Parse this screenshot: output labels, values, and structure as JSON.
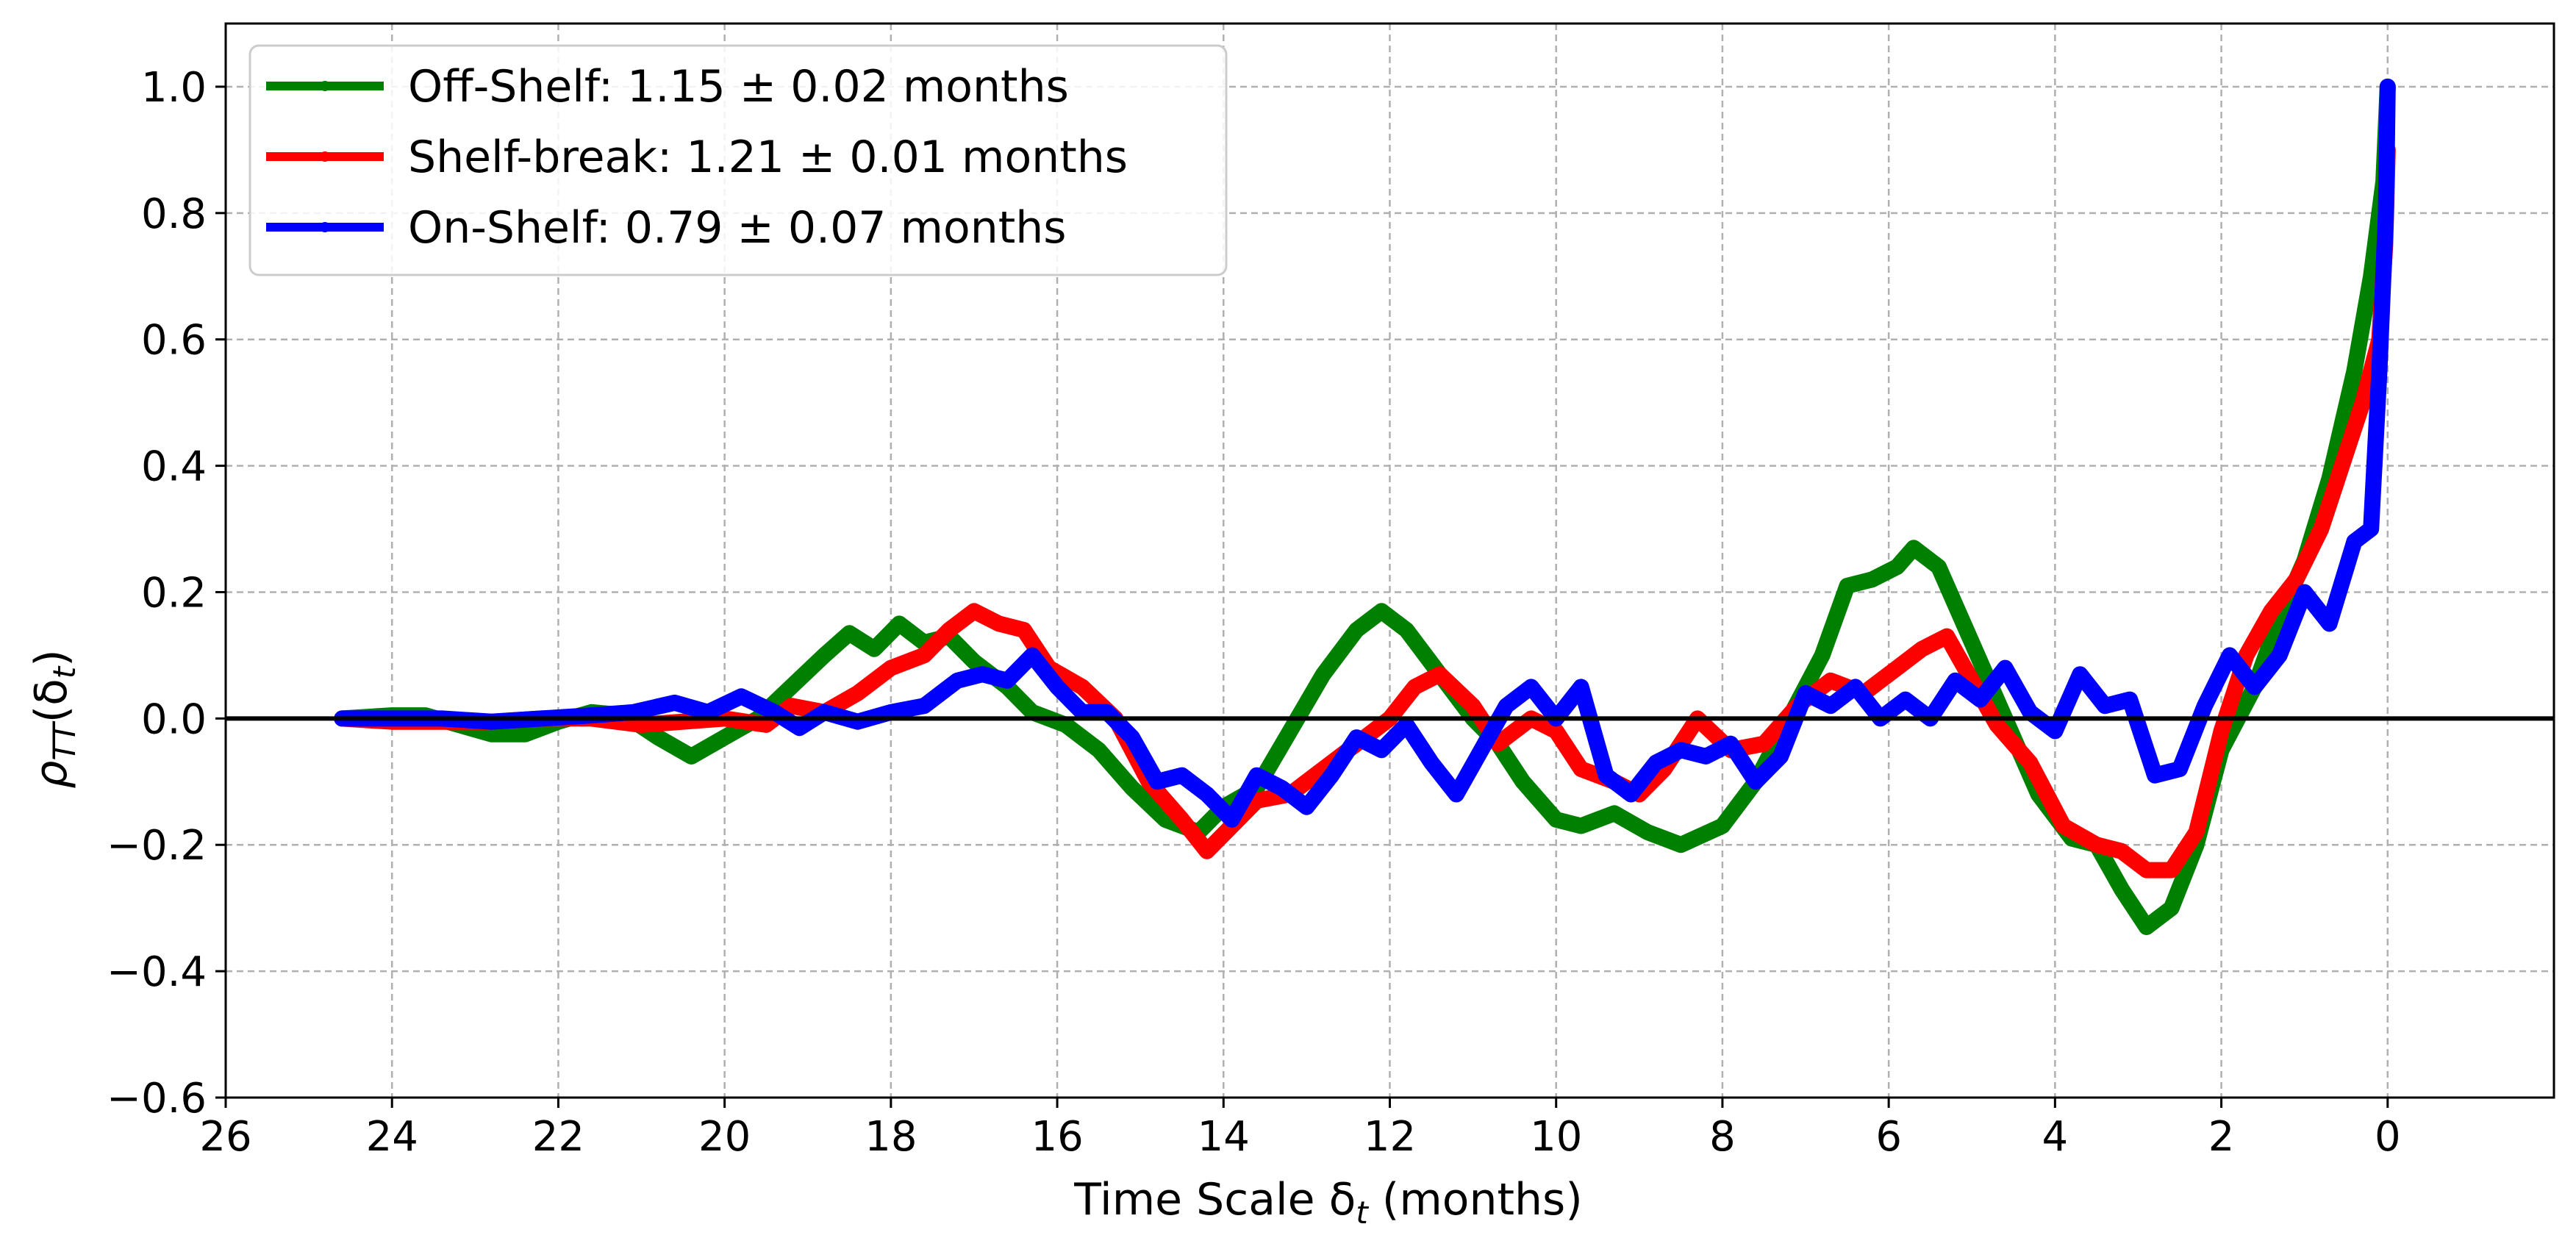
{
  "chart_data": {
    "type": "line",
    "xlabel": "Time Scale δ",
    "xlabel_sub": "t",
    "xlabel_suffix": " (months)",
    "ylabel": "ρ",
    "ylabel_sub": "TT",
    "ylabel_arg": "(δ",
    "ylabel_arg_sub": "t",
    "ylabel_close": ")",
    "xlim": [
      26,
      -2
    ],
    "ylim": [
      -0.6,
      1.1
    ],
    "x_reversed": true,
    "x_ticks": [
      26,
      24,
      22,
      20,
      18,
      16,
      14,
      12,
      10,
      8,
      6,
      4,
      2,
      0
    ],
    "x_tick_labels": [
      "26",
      "24",
      "22",
      "20",
      "18",
      "16",
      "14",
      "12",
      "10",
      "8",
      "6",
      "4",
      "2",
      "0"
    ],
    "y_ticks": [
      -0.6,
      -0.4,
      -0.2,
      0.0,
      0.2,
      0.4,
      0.6,
      0.8,
      1.0
    ],
    "y_tick_labels": [
      "−0.6",
      "−0.4",
      "−0.2",
      "0.0",
      "0.2",
      "0.4",
      "0.6",
      "0.8",
      "1.0"
    ],
    "grid": true,
    "zero_line": true,
    "legend_position": "upper-left",
    "series": [
      {
        "name": "Off-Shelf: 1.15 ± 0.02 months",
        "color": "#008000",
        "points": [
          [
            24.6,
            0.0
          ],
          [
            24,
            0.005
          ],
          [
            23.6,
            0.005
          ],
          [
            23.2,
            -0.01
          ],
          [
            22.8,
            -0.025
          ],
          [
            22.4,
            -0.025
          ],
          [
            22.0,
            -0.005
          ],
          [
            21.6,
            0.01
          ],
          [
            21.2,
            0.005
          ],
          [
            20.8,
            -0.03
          ],
          [
            20.4,
            -0.06
          ],
          [
            20.0,
            -0.03
          ],
          [
            19.6,
            0.0
          ],
          [
            19.2,
            0.05
          ],
          [
            18.8,
            0.1
          ],
          [
            18.5,
            0.135
          ],
          [
            18.2,
            0.11
          ],
          [
            17.9,
            0.15
          ],
          [
            17.6,
            0.12
          ],
          [
            17.3,
            0.13
          ],
          [
            17.0,
            0.09
          ],
          [
            16.6,
            0.05
          ],
          [
            16.3,
            0.01
          ],
          [
            15.9,
            -0.01
          ],
          [
            15.5,
            -0.05
          ],
          [
            15.1,
            -0.11
          ],
          [
            14.7,
            -0.16
          ],
          [
            14.3,
            -0.18
          ],
          [
            14.0,
            -0.14
          ],
          [
            13.6,
            -0.11
          ],
          [
            13.2,
            -0.02
          ],
          [
            12.8,
            0.07
          ],
          [
            12.4,
            0.14
          ],
          [
            12.1,
            0.17
          ],
          [
            11.8,
            0.14
          ],
          [
            11.4,
            0.07
          ],
          [
            11.0,
            0.0
          ],
          [
            10.7,
            -0.04
          ],
          [
            10.4,
            -0.1
          ],
          [
            10.0,
            -0.16
          ],
          [
            9.7,
            -0.17
          ],
          [
            9.3,
            -0.15
          ],
          [
            8.9,
            -0.18
          ],
          [
            8.5,
            -0.2
          ],
          [
            8.0,
            -0.17
          ],
          [
            7.6,
            -0.1
          ],
          [
            7.2,
            0.0
          ],
          [
            6.8,
            0.1
          ],
          [
            6.5,
            0.21
          ],
          [
            6.2,
            0.22
          ],
          [
            5.9,
            0.24
          ],
          [
            5.7,
            0.27
          ],
          [
            5.4,
            0.24
          ],
          [
            5.0,
            0.12
          ],
          [
            4.6,
            0.0
          ],
          [
            4.2,
            -0.12
          ],
          [
            3.8,
            -0.19
          ],
          [
            3.5,
            -0.2
          ],
          [
            3.2,
            -0.27
          ],
          [
            2.9,
            -0.33
          ],
          [
            2.6,
            -0.3
          ],
          [
            2.3,
            -0.2
          ],
          [
            2.0,
            -0.05
          ],
          [
            1.6,
            0.05
          ],
          [
            1.3,
            0.16
          ],
          [
            1.0,
            0.25
          ],
          [
            0.7,
            0.38
          ],
          [
            0.4,
            0.55
          ],
          [
            0.2,
            0.7
          ],
          [
            0.05,
            0.85
          ],
          [
            0.0,
            1.0
          ]
        ]
      },
      {
        "name": "Shelf-break: 1.21 ± 0.01 months",
        "color": "#ff0000",
        "points": [
          [
            24.6,
            0.0
          ],
          [
            24,
            -0.005
          ],
          [
            23.4,
            -0.005
          ],
          [
            22.8,
            -0.005
          ],
          [
            22.2,
            0.0
          ],
          [
            21.6,
            0.0
          ],
          [
            21.0,
            -0.01
          ],
          [
            20.5,
            -0.005
          ],
          [
            20.0,
            0.0
          ],
          [
            19.5,
            -0.01
          ],
          [
            19.2,
            0.02
          ],
          [
            18.8,
            0.01
          ],
          [
            18.4,
            0.04
          ],
          [
            18.0,
            0.08
          ],
          [
            17.6,
            0.1
          ],
          [
            17.3,
            0.14
          ],
          [
            17.0,
            0.17
          ],
          [
            16.7,
            0.15
          ],
          [
            16.4,
            0.14
          ],
          [
            16.1,
            0.08
          ],
          [
            15.7,
            0.05
          ],
          [
            15.3,
            0.0
          ],
          [
            14.9,
            -0.1
          ],
          [
            14.5,
            -0.16
          ],
          [
            14.2,
            -0.21
          ],
          [
            13.9,
            -0.17
          ],
          [
            13.6,
            -0.13
          ],
          [
            13.2,
            -0.12
          ],
          [
            12.8,
            -0.08
          ],
          [
            12.4,
            -0.04
          ],
          [
            12.0,
            0.0
          ],
          [
            11.7,
            0.05
          ],
          [
            11.4,
            0.07
          ],
          [
            11.0,
            0.02
          ],
          [
            10.7,
            -0.04
          ],
          [
            10.3,
            0.0
          ],
          [
            10.0,
            -0.02
          ],
          [
            9.7,
            -0.08
          ],
          [
            9.3,
            -0.1
          ],
          [
            9.0,
            -0.12
          ],
          [
            8.7,
            -0.08
          ],
          [
            8.3,
            0.0
          ],
          [
            7.9,
            -0.05
          ],
          [
            7.5,
            -0.04
          ],
          [
            7.1,
            0.02
          ],
          [
            6.7,
            0.06
          ],
          [
            6.3,
            0.04
          ],
          [
            5.9,
            0.08
          ],
          [
            5.6,
            0.11
          ],
          [
            5.3,
            0.13
          ],
          [
            5.0,
            0.06
          ],
          [
            4.7,
            -0.01
          ],
          [
            4.3,
            -0.07
          ],
          [
            3.9,
            -0.17
          ],
          [
            3.5,
            -0.2
          ],
          [
            3.2,
            -0.21
          ],
          [
            2.9,
            -0.24
          ],
          [
            2.6,
            -0.24
          ],
          [
            2.3,
            -0.18
          ],
          [
            2.0,
            -0.02
          ],
          [
            1.7,
            0.1
          ],
          [
            1.4,
            0.17
          ],
          [
            1.1,
            0.22
          ],
          [
            0.8,
            0.3
          ],
          [
            0.5,
            0.42
          ],
          [
            0.3,
            0.5
          ],
          [
            0.1,
            0.6
          ],
          [
            0.03,
            0.75
          ],
          [
            0.0,
            0.9
          ]
        ]
      },
      {
        "name": "On-Shelf: 0.79 ± 0.07 months",
        "color": "#0000ff",
        "points": [
          [
            24.6,
            0.0
          ],
          [
            24,
            0.0
          ],
          [
            23.4,
            0.0
          ],
          [
            22.8,
            -0.005
          ],
          [
            22.2,
            0.0
          ],
          [
            21.6,
            0.005
          ],
          [
            21.1,
            0.01
          ],
          [
            20.6,
            0.025
          ],
          [
            20.2,
            0.01
          ],
          [
            19.8,
            0.035
          ],
          [
            19.4,
            0.01
          ],
          [
            19.1,
            -0.015
          ],
          [
            18.8,
            0.01
          ],
          [
            18.4,
            -0.005
          ],
          [
            18.0,
            0.01
          ],
          [
            17.6,
            0.02
          ],
          [
            17.2,
            0.06
          ],
          [
            16.9,
            0.07
          ],
          [
            16.6,
            0.06
          ],
          [
            16.3,
            0.1
          ],
          [
            16.0,
            0.05
          ],
          [
            15.7,
            0.01
          ],
          [
            15.4,
            0.01
          ],
          [
            15.1,
            -0.03
          ],
          [
            14.8,
            -0.1
          ],
          [
            14.5,
            -0.09
          ],
          [
            14.2,
            -0.12
          ],
          [
            13.9,
            -0.16
          ],
          [
            13.6,
            -0.09
          ],
          [
            13.3,
            -0.11
          ],
          [
            13.0,
            -0.14
          ],
          [
            12.7,
            -0.09
          ],
          [
            12.4,
            -0.03
          ],
          [
            12.1,
            -0.05
          ],
          [
            11.8,
            -0.01
          ],
          [
            11.5,
            -0.07
          ],
          [
            11.2,
            -0.12
          ],
          [
            10.9,
            -0.05
          ],
          [
            10.6,
            0.02
          ],
          [
            10.3,
            0.05
          ],
          [
            10.0,
            0.0
          ],
          [
            9.7,
            0.05
          ],
          [
            9.4,
            -0.09
          ],
          [
            9.1,
            -0.12
          ],
          [
            8.8,
            -0.07
          ],
          [
            8.5,
            -0.05
          ],
          [
            8.2,
            -0.06
          ],
          [
            7.9,
            -0.04
          ],
          [
            7.6,
            -0.1
          ],
          [
            7.3,
            -0.06
          ],
          [
            7.0,
            0.04
          ],
          [
            6.7,
            0.02
          ],
          [
            6.4,
            0.05
          ],
          [
            6.1,
            0.0
          ],
          [
            5.8,
            0.03
          ],
          [
            5.5,
            0.0
          ],
          [
            5.2,
            0.06
          ],
          [
            4.9,
            0.03
          ],
          [
            4.6,
            0.08
          ],
          [
            4.3,
            0.01
          ],
          [
            4.0,
            -0.02
          ],
          [
            3.7,
            0.07
          ],
          [
            3.4,
            0.02
          ],
          [
            3.1,
            0.03
          ],
          [
            2.8,
            -0.09
          ],
          [
            2.5,
            -0.08
          ],
          [
            2.2,
            0.02
          ],
          [
            1.9,
            0.1
          ],
          [
            1.6,
            0.05
          ],
          [
            1.3,
            0.1
          ],
          [
            1.0,
            0.2
          ],
          [
            0.7,
            0.15
          ],
          [
            0.4,
            0.28
          ],
          [
            0.2,
            0.3
          ],
          [
            0.1,
            0.55
          ],
          [
            0.02,
            0.8
          ],
          [
            0.0,
            1.0
          ]
        ]
      }
    ]
  }
}
